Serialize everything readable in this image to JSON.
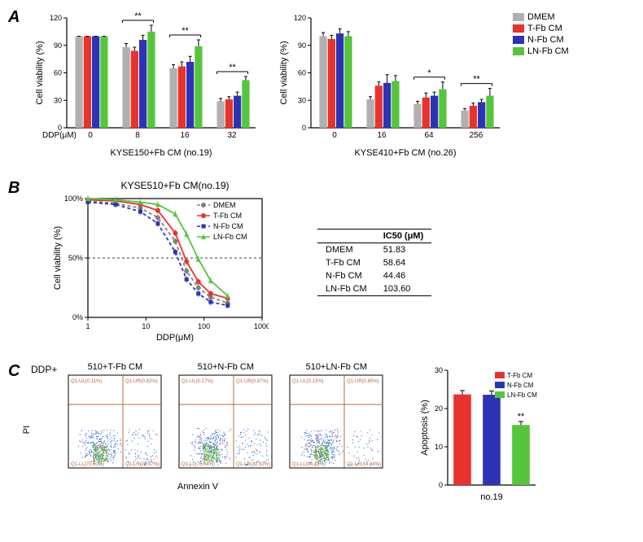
{
  "colors": {
    "dmem": "#b0b0b0",
    "tfb": "#e8332c",
    "nfb": "#2c34b5",
    "lnfb": "#55c53c",
    "axis": "#000000",
    "bg": "#ffffff"
  },
  "legend": {
    "items": [
      {
        "label": "DMEM",
        "color": "#b0b0b0"
      },
      {
        "label": "T-Fb CM",
        "color": "#e8332c"
      },
      {
        "label": "N-Fb CM",
        "color": "#2c34b5"
      },
      {
        "label": "LN-Fb CM",
        "color": "#55c53c"
      }
    ]
  },
  "panelA": {
    "label": "A",
    "left": {
      "xlabel": "DDP(μM)",
      "title": "KYSE150+Fb CM (no.19)",
      "ylabel": "Cell viability (%)",
      "ylim": [
        0,
        120
      ],
      "yticks": [
        0,
        30,
        60,
        90,
        120
      ],
      "groups": [
        "0",
        "8",
        "16",
        "32"
      ],
      "data": [
        {
          "vals": [
            100,
            100,
            100,
            100
          ],
          "err": [
            0,
            0,
            0,
            0
          ]
        },
        {
          "vals": [
            88,
            84,
            96,
            105
          ],
          "err": [
            4,
            4,
            5,
            7
          ],
          "sig": "**"
        },
        {
          "vals": [
            65,
            67,
            72,
            89
          ],
          "err": [
            4,
            5,
            6,
            7
          ],
          "sig": "**"
        },
        {
          "vals": [
            29,
            31,
            35,
            52
          ],
          "err": [
            3,
            3,
            4,
            4
          ],
          "sig": "**"
        }
      ]
    },
    "right": {
      "xlabel": "",
      "title": "KYSE410+Fb CM (no.26)",
      "ylabel": "Cell viability (%)",
      "ylim": [
        0,
        120
      ],
      "yticks": [
        0,
        30,
        60,
        90,
        120
      ],
      "groups": [
        "0",
        "16",
        "64",
        "256"
      ],
      "data": [
        {
          "vals": [
            100,
            97,
            103,
            100
          ],
          "err": [
            4,
            4,
            5,
            5
          ]
        },
        {
          "vals": [
            31,
            46,
            49,
            51
          ],
          "err": [
            3,
            4,
            9,
            6
          ]
        },
        {
          "vals": [
            26,
            33,
            35,
            42
          ],
          "err": [
            3,
            5,
            4,
            8
          ],
          "sig": "*"
        },
        {
          "vals": [
            19,
            24,
            28,
            35
          ],
          "err": [
            2,
            3,
            3,
            8
          ],
          "sig": "**"
        }
      ]
    }
  },
  "panelB": {
    "label": "B",
    "title": "KYSE510+Fb CM(no.19)",
    "ylabel": "Cell viability (%)",
    "xlabel": "DDP(μM)",
    "xticks": [
      1,
      10,
      100,
      1000
    ],
    "yticks": [
      0,
      50,
      100
    ],
    "yticklabels": [
      "0%",
      "50%",
      "100%"
    ],
    "series": [
      {
        "name": "DMEM",
        "color": "#808080",
        "marker": "circle",
        "dash": "4 3",
        "pts": [
          [
            1,
            98
          ],
          [
            3,
            96
          ],
          [
            8,
            92
          ],
          [
            16,
            84
          ],
          [
            32,
            64
          ],
          [
            50,
            39
          ],
          [
            80,
            25
          ],
          [
            130,
            17
          ],
          [
            256,
            12
          ]
        ]
      },
      {
        "name": "T-Fb CM",
        "color": "#e8332c",
        "marker": "circle",
        "dash": "",
        "pts": [
          [
            1,
            99
          ],
          [
            3,
            98
          ],
          [
            8,
            95
          ],
          [
            16,
            90
          ],
          [
            32,
            71
          ],
          [
            50,
            47
          ],
          [
            80,
            30
          ],
          [
            130,
            20
          ],
          [
            256,
            16
          ]
        ]
      },
      {
        "name": "N-Fb CM",
        "color": "#2c34b5",
        "marker": "square",
        "dash": "4 3",
        "pts": [
          [
            1,
            97
          ],
          [
            3,
            95
          ],
          [
            8,
            89
          ],
          [
            16,
            79
          ],
          [
            32,
            55
          ],
          [
            50,
            32
          ],
          [
            80,
            20
          ],
          [
            130,
            13
          ],
          [
            256,
            10
          ]
        ]
      },
      {
        "name": "LN-Fb CM",
        "color": "#55c53c",
        "marker": "triangle",
        "dash": "",
        "pts": [
          [
            1,
            100
          ],
          [
            3,
            99
          ],
          [
            8,
            97
          ],
          [
            16,
            95
          ],
          [
            32,
            87
          ],
          [
            50,
            70
          ],
          [
            80,
            49
          ],
          [
            130,
            31
          ],
          [
            256,
            18
          ]
        ]
      }
    ],
    "table": {
      "header": [
        "",
        "IC50 (μM)"
      ],
      "rows": [
        [
          "DMEM",
          "51.83"
        ],
        [
          "T-Fb CM",
          "58.64"
        ],
        [
          "N-Fb CM",
          "44.46"
        ],
        [
          "LN-Fb CM",
          "103.60"
        ]
      ]
    }
  },
  "panelC": {
    "label": "C",
    "prefix": "DDP+",
    "ylabels": "PI",
    "xlabels": "Annexin V",
    "panels": [
      {
        "title": "510+T-Fb CM",
        "q": [
          "Q1-UL(0.11%)",
          "Q1-UR(0.82%)",
          "Q1-LL(75.60%)",
          "Q1-LR(23.47%)"
        ]
      },
      {
        "title": "510+N-Fb CM",
        "q": [
          "Q1-UL(0.17%)",
          "Q1-UR(0.87%)",
          "Q1-LL(76.04%)",
          "Q1-LR(22.92%)"
        ]
      },
      {
        "title": "510+LN-Fb CM",
        "q": [
          "Q1-UL(0.13%)",
          "Q1-UR(0.65%)",
          "Q1-LL(84.88%)",
          "Q1-LR(14.34%)"
        ]
      }
    ],
    "bar": {
      "ylabel": "Apoptosis (%)",
      "yticks": [
        0,
        10,
        20,
        30
      ],
      "title": "no.19",
      "data": [
        {
          "label": "T-Fb CM",
          "val": 23.7,
          "err": 1.0,
          "color": "#e8332c"
        },
        {
          "label": "N-Fb CM",
          "val": 23.6,
          "err": 1.0,
          "color": "#2c34b5"
        },
        {
          "label": "LN-Fb CM",
          "val": 15.7,
          "err": 0.9,
          "color": "#55c53c",
          "sig": "**"
        }
      ]
    }
  }
}
